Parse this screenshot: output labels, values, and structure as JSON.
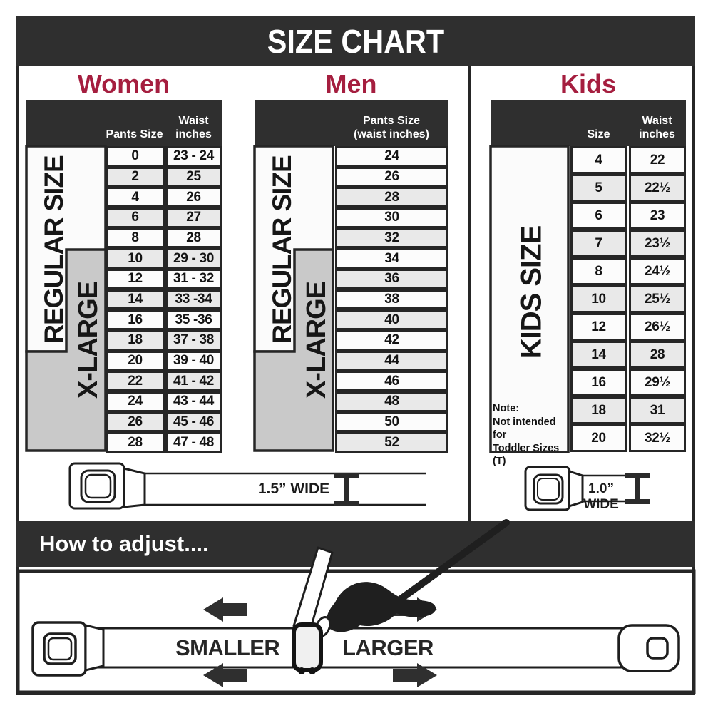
{
  "title": "SIZE CHART",
  "sections": {
    "women": {
      "label": "Women",
      "col_pants": "Pants Size",
      "col_waist_1": "Waist",
      "col_waist_2": "inches",
      "rows": [
        [
          "0",
          "23 - 24"
        ],
        [
          "2",
          "25"
        ],
        [
          "4",
          "26"
        ],
        [
          "6",
          "27"
        ],
        [
          "8",
          "28"
        ],
        [
          "10",
          "29 - 30"
        ],
        [
          "12",
          "31 - 32"
        ],
        [
          "14",
          "33 -34"
        ],
        [
          "16",
          "35 -36"
        ],
        [
          "18",
          "37 - 38"
        ],
        [
          "20",
          "39 - 40"
        ],
        [
          "22",
          "41 - 42"
        ],
        [
          "24",
          "43 - 44"
        ],
        [
          "26",
          "45 - 46"
        ],
        [
          "28",
          "47 - 48"
        ]
      ]
    },
    "men": {
      "label": "Men",
      "header_line1": "Pants Size",
      "header_line2": "(waist inches)",
      "rows": [
        "24",
        "26",
        "28",
        "30",
        "32",
        "34",
        "36",
        "38",
        "40",
        "42",
        "44",
        "46",
        "48",
        "50",
        "52"
      ]
    },
    "kids": {
      "label": "Kids",
      "col_size": "Size",
      "col_waist_1": "Waist",
      "col_waist_2": "inches",
      "rows": [
        [
          "4",
          "22"
        ],
        [
          "5",
          "22½"
        ],
        [
          "6",
          "23"
        ],
        [
          "7",
          "23½"
        ],
        [
          "8",
          "24½"
        ],
        [
          "10",
          "25½"
        ],
        [
          "12",
          "26½"
        ],
        [
          "14",
          "28"
        ],
        [
          "16",
          "29½"
        ],
        [
          "18",
          "31"
        ],
        [
          "20",
          "32½"
        ]
      ],
      "note_line1": "Note:",
      "note_line2": "Not intended for",
      "note_line3": "Toddler Sizes (T)"
    }
  },
  "labels": {
    "regular": "REGULAR SIZE",
    "xlarge": "X-LARGE",
    "kids_size": "KIDS SIZE"
  },
  "belts": {
    "adult_width": "1.5” WIDE",
    "kids_width": "1.0” WIDE"
  },
  "adjust": {
    "title": "How to adjust....",
    "smaller": "SMALLER",
    "larger": "LARGER"
  },
  "colors": {
    "accent_crimson": "#A51E3F",
    "banner_dark": "#2F2F2F",
    "row_shade": "#E9E9E9",
    "xlarge_gray": "#C9C9C9"
  }
}
